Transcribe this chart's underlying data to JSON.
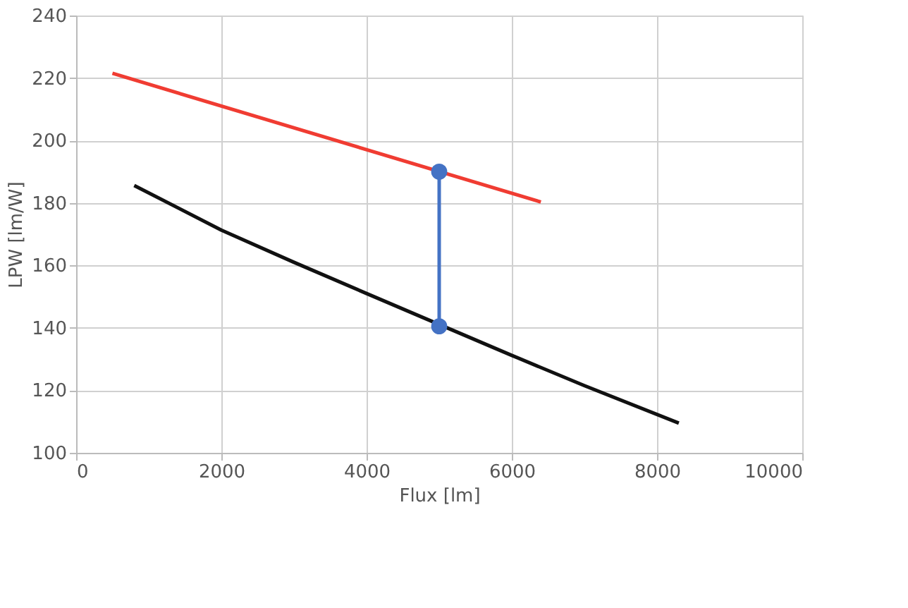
{
  "chart_data": {
    "type": "line",
    "xlabel": "Flux [lm]",
    "ylabel": "LPW [lm/W]",
    "xlim": [
      0,
      10000
    ],
    "xticks": [
      0,
      2000,
      4000,
      6000,
      8000,
      10000
    ],
    "ylim": [
      100,
      240
    ],
    "yticks": [
      100,
      120,
      140,
      160,
      180,
      200,
      220,
      240
    ],
    "grid": true,
    "marker": "none",
    "line_style": "solid",
    "series": [
      {
        "color": "#f03c32",
        "x": [
          500,
          6400
        ],
        "values": [
          221.5,
          180.3
        ]
      },
      {
        "color": "#111111",
        "x": [
          800,
          2000,
          3000,
          4000,
          6000,
          7000,
          8300
        ],
        "values": [
          185.6,
          171.3,
          161,
          151,
          131.2,
          121.5,
          109.5
        ]
      },
      {
        "color": "#4472c4",
        "marker": "circle",
        "x": [
          5000,
          5000
        ],
        "values": [
          190,
          140.5
        ]
      }
    ]
  }
}
